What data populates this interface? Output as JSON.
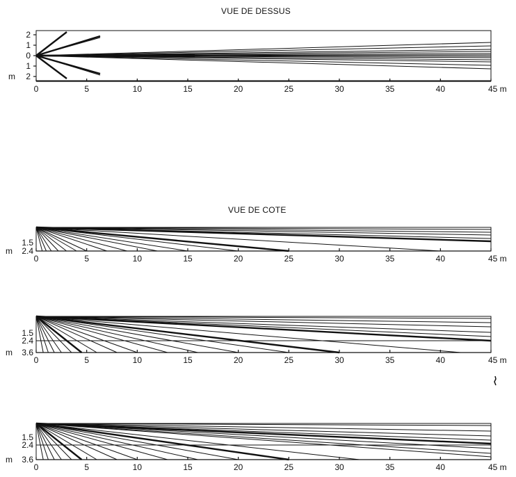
{
  "titles": {
    "top": "VUE DE DESSUS",
    "side": "VUE DE COTE"
  },
  "axis": {
    "x_ticks": [
      "0",
      "5",
      "10",
      "15",
      "20",
      "25",
      "30",
      "35",
      "40",
      "45 m"
    ],
    "x_tick_values": [
      0,
      5,
      10,
      15,
      20,
      25,
      30,
      35,
      40,
      45
    ]
  },
  "top_view": {
    "y_labels": [
      "2",
      "1",
      "0",
      "1",
      "2"
    ],
    "unit": "m"
  },
  "side_views": [
    {
      "y_labels": [
        "1.5",
        "2.4"
      ],
      "unit": "m"
    },
    {
      "y_labels": [
        "1.5",
        "2.4",
        "3.6"
      ],
      "unit": "m"
    },
    {
      "y_labels": [
        "1.5",
        "2.4",
        "3.6"
      ],
      "unit": "m"
    }
  ]
}
